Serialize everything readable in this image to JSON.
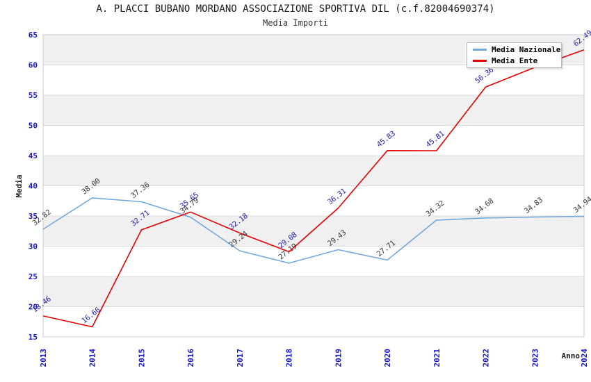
{
  "title": "A. PLACCI BUBANO MORDANO ASSOCIAZIONE SPORTIVA DIL (c.f.82004690374)",
  "subtitle": "Media Importi",
  "colors": {
    "axis_tick_blue": "#1515cd",
    "axis_title": "#1a1a1a",
    "band_gray": "#f0f0f0",
    "band_white": "#ffffff",
    "gridline": "#dcdcdc",
    "plot_border": "#c8ced4",
    "nazionale_line": "#74a7db",
    "ente_line": "#e60000",
    "nazionale_label": "#3a3a3a",
    "ente_label": "#2424b4"
  },
  "chart_data": {
    "type": "line",
    "title": "A. PLACCI BUBANO MORDANO ASSOCIAZIONE SPORTIVA DIL (c.f.82004690374)",
    "subtitle": "Media Importi",
    "xlabel": "Anno",
    "ylabel": "Media",
    "ylim": [
      15,
      65
    ],
    "ytick_step": 5,
    "grid": "horizontal gridlines with alternating gray/white bands",
    "legend_position": "top-right",
    "categories": [
      "2013",
      "2014",
      "2015",
      "2016",
      "2017",
      "2018",
      "2019",
      "2020",
      "2021",
      "2022",
      "2023",
      "2024"
    ],
    "series": [
      {
        "name": "Media Nazionale",
        "color": "#74a7db",
        "label_color": "#3a3a3a",
        "values": [
          32.82,
          38.0,
          37.36,
          34.79,
          29.24,
          27.19,
          29.43,
          27.71,
          34.32,
          34.68,
          34.83,
          34.94
        ],
        "labels": [
          "32.82",
          "38.00",
          "37.36",
          "34.79",
          "29.24",
          "27.19",
          "29.43",
          "27.71",
          "34.32",
          "34.68",
          "34.83",
          "34.94"
        ]
      },
      {
        "name": "Media Ente",
        "color": "#e60000",
        "label_color": "#2424b4",
        "values": [
          18.46,
          16.66,
          32.71,
          35.65,
          32.18,
          29.08,
          36.31,
          45.83,
          45.81,
          56.36,
          59.6,
          62.49
        ],
        "labels": [
          "18.46",
          "16.66",
          "32.71",
          "35.65",
          "32.18",
          "29.08",
          "36.31",
          "45.83",
          "45.81",
          "56.36",
          "",
          "62.49"
        ],
        "note": "2023 value label is hidden behind the legend box; 59.6 estimated from line position"
      }
    ]
  }
}
